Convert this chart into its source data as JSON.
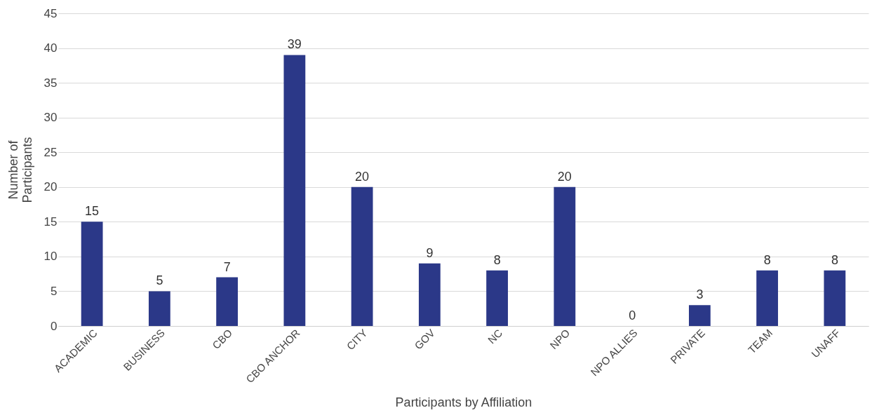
{
  "chart_data": {
    "type": "bar",
    "xlabel": "Participants by Affiliation",
    "ylabel": "Number of\nParticipants",
    "categories": [
      "ACADEMIC",
      "BUSINESS",
      "CBO",
      "CBO ANCHOR",
      "CITY",
      "GOV",
      "NC",
      "NPO",
      "NPO ALLIES",
      "PRIVATE",
      "TEAM",
      "UNAFF"
    ],
    "values": [
      15,
      5,
      7,
      39,
      20,
      9,
      8,
      20,
      0,
      3,
      8,
      8
    ],
    "color": "#2b3888",
    "ylim": [
      0,
      45
    ],
    "yticks": [
      0,
      5,
      10,
      15,
      20,
      25,
      30,
      35,
      40,
      45
    ],
    "grid": "y",
    "data_labels": true
  }
}
